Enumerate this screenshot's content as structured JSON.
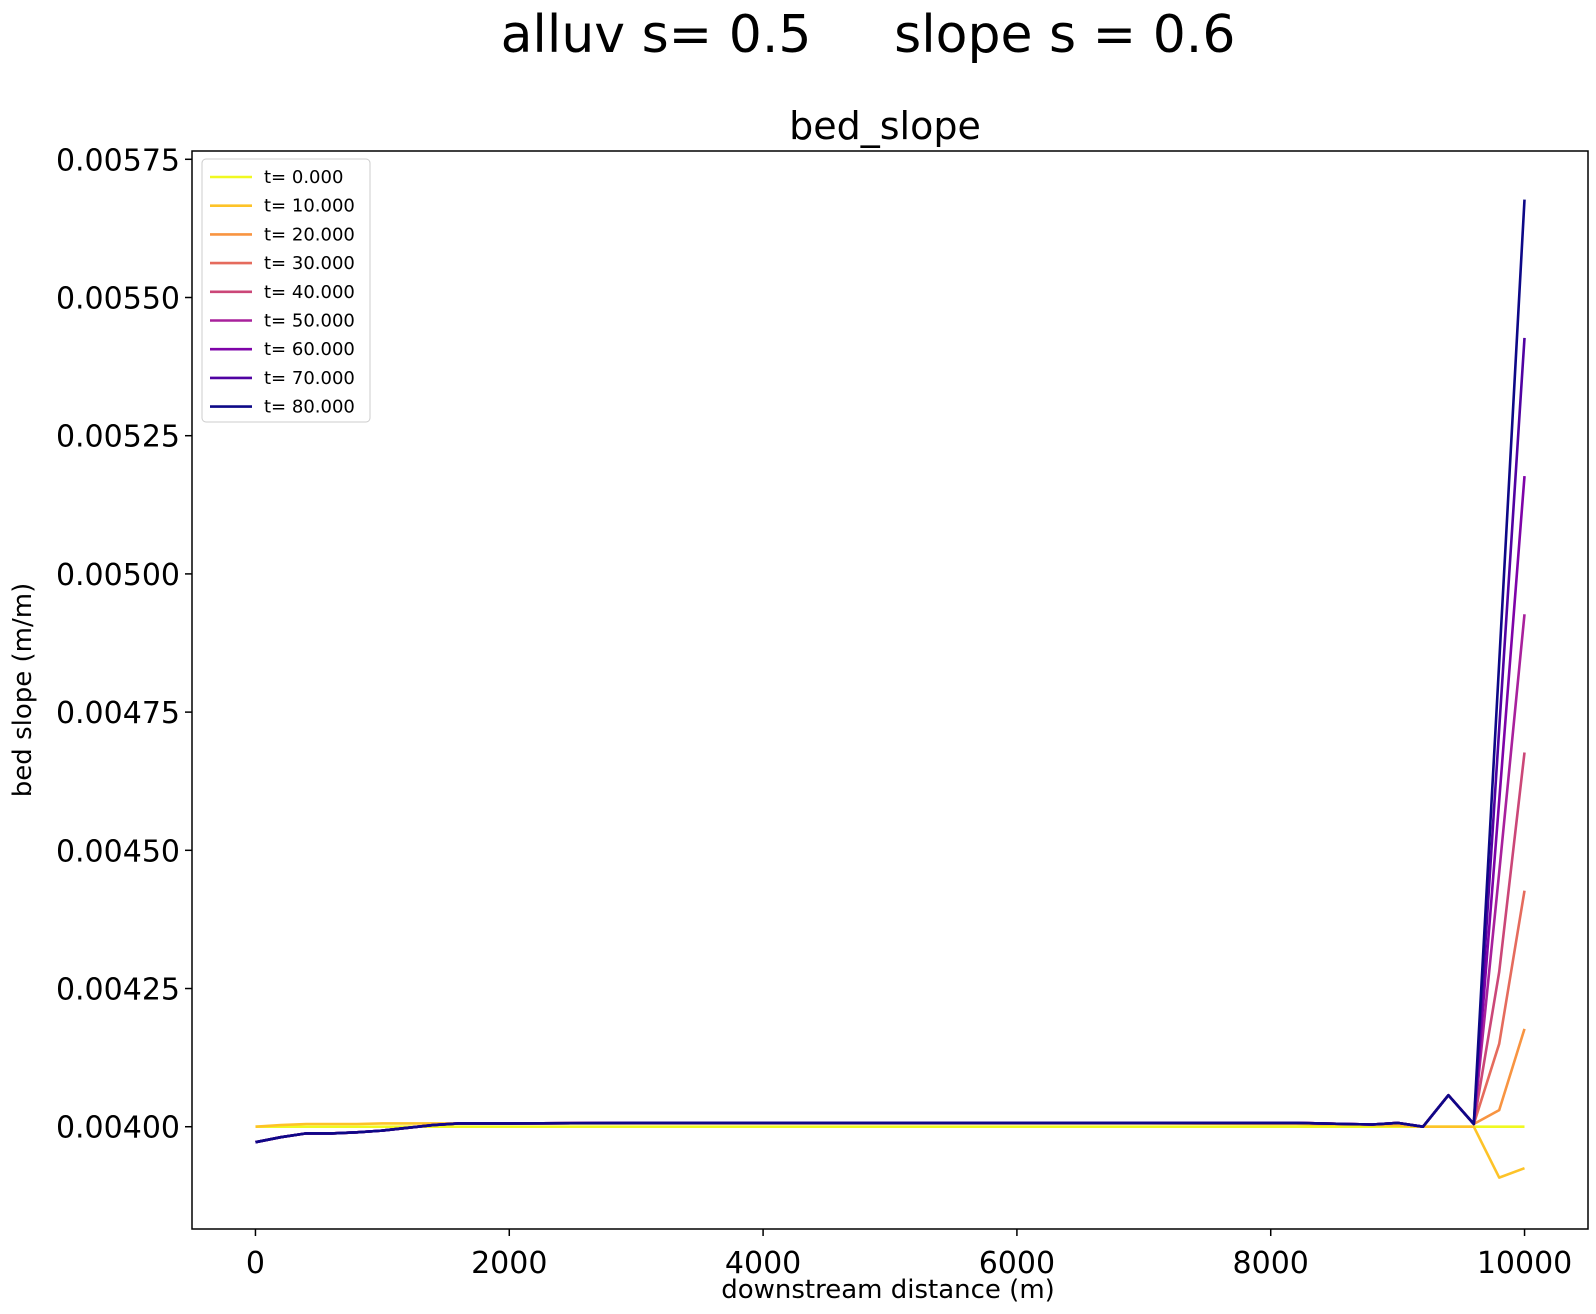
{
  "figure": {
    "suptitle": "alluv s= 0.5     slope s = 0.6"
  },
  "chart_data": {
    "type": "line",
    "title": "bed_slope",
    "xlabel": "downstream distance (m)",
    "ylabel": "bed slope (m/m)",
    "xlim": [
      -500,
      10500
    ],
    "ylim": [
      0.003815,
      0.005765
    ],
    "xticks": [
      0,
      2000,
      4000,
      6000,
      8000,
      10000
    ],
    "xtick_labels": [
      "0",
      "2000",
      "4000",
      "6000",
      "8000",
      "10000"
    ],
    "yticks": [
      0.004,
      0.00425,
      0.0045,
      0.00475,
      0.005,
      0.00525,
      0.0055,
      0.00575
    ],
    "ytick_labels": [
      "0.00400",
      "0.00425",
      "0.00450",
      "0.00475",
      "0.00500",
      "0.00525",
      "0.00550",
      "0.00575"
    ],
    "grid": false,
    "legend_position": "top-left",
    "x": [
      0,
      200,
      400,
      600,
      800,
      1000,
      1200,
      1400,
      1600,
      2000,
      3000,
      4000,
      5000,
      6000,
      7000,
      8000,
      8200,
      8400,
      8600,
      8800,
      9000,
      9200,
      9400,
      9600,
      9800,
      10000
    ],
    "series": [
      {
        "name": "t= 0.000",
        "color": "#f0f921",
        "values": [
          0.004,
          0.004,
          0.004,
          0.004,
          0.004,
          0.004,
          0.004,
          0.004,
          0.004,
          0.004,
          0.004,
          0.004,
          0.004,
          0.004,
          0.004,
          0.004,
          0.004,
          0.004,
          0.004,
          0.004,
          0.004,
          0.004,
          0.004,
          0.004,
          0.004,
          0.004
        ]
      },
      {
        "name": "t= 10.000",
        "color": "#fdc328",
        "values": [
          0.004,
          0.004003,
          0.004005,
          0.004005,
          0.004005,
          0.004006,
          0.004006,
          0.004006,
          0.004006,
          0.004006,
          0.004006,
          0.004006,
          0.004006,
          0.004006,
          0.004006,
          0.004005,
          0.004005,
          0.004004,
          0.004004,
          0.004003,
          0.004002,
          0.004,
          0.004,
          0.004,
          0.003908,
          0.003925
        ]
      },
      {
        "name": "t= 20.000",
        "color": "#f89441",
        "values": [
          0.003972,
          0.003981,
          0.003988,
          0.003988,
          0.00399,
          0.003993,
          0.003998,
          0.004003,
          0.004006,
          0.004006,
          0.004007,
          0.004007,
          0.004007,
          0.004007,
          0.004007,
          0.004007,
          0.004007,
          0.004006,
          0.004005,
          0.004004,
          0.004007,
          0.004,
          0.004057,
          0.004005,
          0.00403,
          0.004177
        ]
      },
      {
        "name": "t= 30.000",
        "color": "#e56b5d",
        "values": [
          0.003972,
          0.003981,
          0.003988,
          0.003988,
          0.00399,
          0.003993,
          0.003998,
          0.004003,
          0.004006,
          0.004006,
          0.004007,
          0.004007,
          0.004007,
          0.004007,
          0.004007,
          0.004007,
          0.004007,
          0.004006,
          0.004005,
          0.004004,
          0.004007,
          0.004,
          0.004057,
          0.004005,
          0.00415,
          0.004427
        ]
      },
      {
        "name": "t= 40.000",
        "color": "#cb4778",
        "values": [
          0.003972,
          0.003981,
          0.003988,
          0.003988,
          0.00399,
          0.003993,
          0.003998,
          0.004003,
          0.004006,
          0.004006,
          0.004007,
          0.004007,
          0.004007,
          0.004007,
          0.004007,
          0.004007,
          0.004007,
          0.004006,
          0.004005,
          0.004004,
          0.004007,
          0.004,
          0.004057,
          0.004005,
          0.00428,
          0.004677
        ]
      },
      {
        "name": "t= 50.000",
        "color": "#a8219c",
        "values": [
          0.003972,
          0.003981,
          0.003988,
          0.003988,
          0.00399,
          0.003993,
          0.003998,
          0.004003,
          0.004006,
          0.004006,
          0.004007,
          0.004007,
          0.004007,
          0.004007,
          0.004007,
          0.004007,
          0.004007,
          0.004006,
          0.004005,
          0.004004,
          0.004007,
          0.004,
          0.004057,
          0.004005,
          0.00446,
          0.004927
        ]
      },
      {
        "name": "t= 60.000",
        "color": "#7e03a8",
        "values": [
          0.003972,
          0.003981,
          0.003988,
          0.003988,
          0.00399,
          0.003993,
          0.003998,
          0.004003,
          0.004006,
          0.004006,
          0.004007,
          0.004007,
          0.004007,
          0.004007,
          0.004007,
          0.004007,
          0.004007,
          0.004006,
          0.004005,
          0.004004,
          0.004007,
          0.004,
          0.004057,
          0.004005,
          0.00459,
          0.005177
        ]
      },
      {
        "name": "t= 70.000",
        "color": "#5002a2",
        "values": [
          0.003972,
          0.003981,
          0.003988,
          0.003988,
          0.00399,
          0.003993,
          0.003998,
          0.004003,
          0.004006,
          0.004006,
          0.004007,
          0.004007,
          0.004007,
          0.004007,
          0.004007,
          0.004007,
          0.004007,
          0.004006,
          0.004005,
          0.004004,
          0.004007,
          0.004,
          0.004057,
          0.004005,
          0.00472,
          0.005427
        ]
      },
      {
        "name": "t= 80.000",
        "color": "#0d0887",
        "values": [
          0.003972,
          0.003981,
          0.003988,
          0.003988,
          0.00399,
          0.003993,
          0.003998,
          0.004003,
          0.004006,
          0.004006,
          0.004007,
          0.004007,
          0.004007,
          0.004007,
          0.004007,
          0.004007,
          0.004007,
          0.004006,
          0.004005,
          0.004004,
          0.004007,
          0.004,
          0.004057,
          0.004005,
          0.00484,
          0.005677
        ]
      }
    ]
  }
}
